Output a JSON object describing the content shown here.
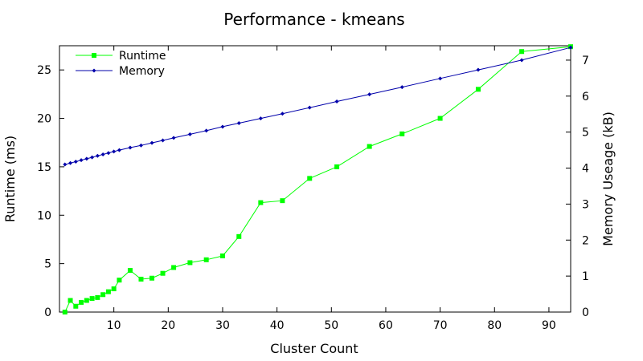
{
  "chart_data": {
    "type": "line",
    "title": "Performance - kmeans",
    "xlabel": "Cluster Count",
    "ylabel": "Runtime (ms)",
    "y2label": "Memory Useage (kB)",
    "xlim": [
      0,
      94
    ],
    "ylim": [
      0,
      27.5
    ],
    "y2lim": [
      0,
      7.4
    ],
    "xticks": [
      10,
      20,
      30,
      40,
      50,
      60,
      70,
      80,
      90
    ],
    "yticks": [
      0,
      5,
      10,
      15,
      20,
      25
    ],
    "y2ticks": [
      0,
      1,
      2,
      3,
      4,
      5,
      6,
      7
    ],
    "legend_position": "top-left",
    "grid": false,
    "series": [
      {
        "name": "Runtime",
        "axis": "left",
        "color": "#00ff00",
        "marker": "square",
        "x": [
          1,
          2,
          3,
          4,
          5,
          6,
          7,
          8,
          9,
          10,
          11,
          13,
          15,
          17,
          19,
          21,
          24,
          27,
          30,
          33,
          37,
          41,
          46,
          51,
          57,
          63,
          70,
          77,
          85,
          94
        ],
        "y": [
          0.0,
          1.2,
          0.6,
          1.0,
          1.2,
          1.4,
          1.5,
          1.8,
          2.1,
          2.4,
          3.3,
          4.3,
          3.4,
          3.5,
          4.0,
          4.6,
          5.1,
          5.4,
          5.8,
          7.8,
          11.3,
          11.5,
          13.8,
          15.0,
          17.1,
          18.4,
          20.0,
          23.0,
          26.9,
          27.4
        ]
      },
      {
        "name": "Memory",
        "axis": "right",
        "color": "#0000aa",
        "marker": "diamond",
        "x": [
          1,
          2,
          3,
          4,
          5,
          6,
          7,
          8,
          9,
          10,
          11,
          13,
          15,
          17,
          19,
          21,
          24,
          27,
          30,
          33,
          37,
          41,
          46,
          51,
          57,
          63,
          70,
          77,
          85,
          94
        ],
        "y": [
          4.1,
          4.14,
          4.18,
          4.22,
          4.26,
          4.3,
          4.34,
          4.38,
          4.42,
          4.46,
          4.5,
          4.57,
          4.63,
          4.7,
          4.77,
          4.84,
          4.94,
          5.04,
          5.15,
          5.25,
          5.38,
          5.51,
          5.68,
          5.85,
          6.05,
          6.25,
          6.49,
          6.73,
          7.0,
          7.35
        ]
      }
    ]
  }
}
